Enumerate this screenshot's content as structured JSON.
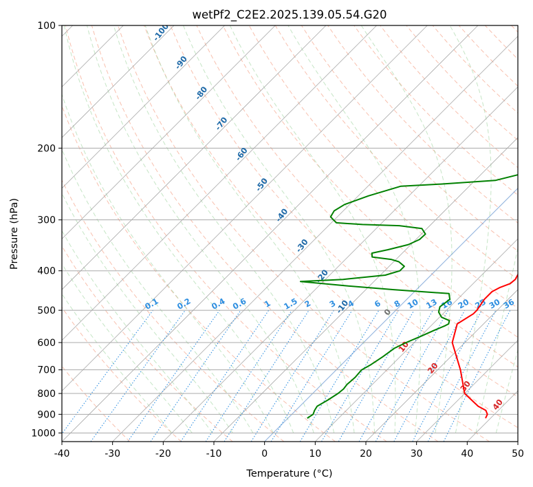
{
  "chart_data": {
    "type": "line",
    "title": "wetPf2_C2E2.2025.139.05.54.G20",
    "xlabel": "Temperature (°C)",
    "ylabel": "Pressure (hPa)",
    "xlim": [
      -40,
      50
    ],
    "ylim": [
      1050,
      100
    ],
    "y_scale": "log",
    "x_ticks": [
      -40,
      -30,
      -20,
      -10,
      0,
      10,
      20,
      30,
      40,
      50
    ],
    "y_ticks": [
      100,
      200,
      300,
      400,
      500,
      600,
      700,
      800,
      900,
      1000
    ],
    "grid": true,
    "skew": true,
    "isotherm_labels": [
      -100,
      -90,
      -80,
      -70,
      -60,
      -50,
      -40,
      -30,
      -20,
      -10,
      0,
      10,
      20,
      30,
      40
    ],
    "mixing_ratio_labels": [
      "0.1",
      "0.2",
      "0.4",
      "0.6",
      "1",
      "1.5",
      "2",
      "3",
      "4",
      "6",
      "8",
      "10",
      "13",
      "16",
      "20",
      "25",
      "30",
      "36"
    ],
    "series": [
      {
        "color": "#ff0000",
        "points": [
          [
            920,
            39.0
          ],
          [
            900,
            38.6
          ],
          [
            880,
            37.5
          ],
          [
            860,
            35.2
          ],
          [
            800,
            30.0
          ],
          [
            700,
            24.5
          ],
          [
            600,
            17.5
          ],
          [
            540,
            14.8
          ],
          [
            510,
            16.0
          ],
          [
            500,
            16.0
          ],
          [
            470,
            15.3
          ],
          [
            450,
            15.3
          ],
          [
            440,
            16.0
          ],
          [
            430,
            17.3
          ],
          [
            420,
            17.5
          ],
          [
            400,
            16.7
          ],
          [
            380,
            15.5
          ],
          [
            360,
            13.5
          ],
          [
            345,
            12.0
          ],
          [
            330,
            11.2
          ],
          [
            310,
            12.0
          ],
          [
            300,
            13.2
          ],
          [
            290,
            13.4
          ],
          [
            275,
            12.7
          ],
          [
            260,
            11.0
          ],
          [
            240,
            8.5
          ],
          [
            220,
            6.2
          ],
          [
            200,
            4.5
          ],
          [
            180,
            3.0
          ],
          [
            160,
            0.9
          ],
          [
            150,
            -0.7
          ],
          [
            140,
            -1.5
          ],
          [
            130,
            -2.0
          ],
          [
            120,
            -2.0
          ],
          [
            110,
            -1.0
          ],
          [
            105,
            0.0
          ],
          [
            100,
            1.8
          ]
        ]
      },
      {
        "color": "#008000",
        "points": [
          [
            920,
            3.8
          ],
          [
            900,
            4.2
          ],
          [
            880,
            3.7
          ],
          [
            860,
            3.4
          ],
          [
            830,
            4.3
          ],
          [
            800,
            5.0
          ],
          [
            780,
            5.2
          ],
          [
            760,
            5.0
          ],
          [
            730,
            5.2
          ],
          [
            700,
            5.0
          ],
          [
            680,
            5.8
          ],
          [
            650,
            6.6
          ],
          [
            620,
            7.2
          ],
          [
            600,
            8.4
          ],
          [
            580,
            10.0
          ],
          [
            560,
            11.5
          ],
          [
            545,
            12.8
          ],
          [
            540,
            13.1
          ],
          [
            530,
            12.6
          ],
          [
            520,
            10.4
          ],
          [
            505,
            8.8
          ],
          [
            490,
            8.0
          ],
          [
            470,
            8.5
          ],
          [
            455,
            7.2
          ],
          [
            445,
            -4.5
          ],
          [
            435,
            -15.0
          ],
          [
            425,
            -24.5
          ],
          [
            420,
            -16.5
          ],
          [
            410,
            -9.0
          ],
          [
            400,
            -7.0
          ],
          [
            390,
            -7.0
          ],
          [
            380,
            -9.0
          ],
          [
            375,
            -11.0
          ],
          [
            370,
            -15.2
          ],
          [
            362,
            -16.0
          ],
          [
            355,
            -13.5
          ],
          [
            345,
            -10.5
          ],
          [
            335,
            -9.3
          ],
          [
            325,
            -9.2
          ],
          [
            315,
            -11.0
          ],
          [
            310,
            -16.0
          ],
          [
            308,
            -23.5
          ],
          [
            305,
            -29.0
          ],
          [
            295,
            -31.3
          ],
          [
            285,
            -31.8
          ],
          [
            275,
            -31.0
          ],
          [
            262,
            -28.0
          ],
          [
            248,
            -23.5
          ],
          [
            245,
            -16.0
          ],
          [
            240,
            -6.0
          ],
          [
            230,
            -1.5
          ],
          [
            220,
            1.5
          ],
          [
            210,
            3.5
          ],
          [
            200,
            4.3
          ],
          [
            185,
            3.5
          ],
          [
            170,
            2.5
          ],
          [
            150,
            0.1
          ],
          [
            140,
            -1.2
          ],
          [
            130,
            -2.6
          ],
          [
            120,
            -3.2
          ],
          [
            110,
            -1.2
          ],
          [
            105,
            0.3
          ],
          [
            100,
            1.5
          ]
        ]
      }
    ]
  }
}
